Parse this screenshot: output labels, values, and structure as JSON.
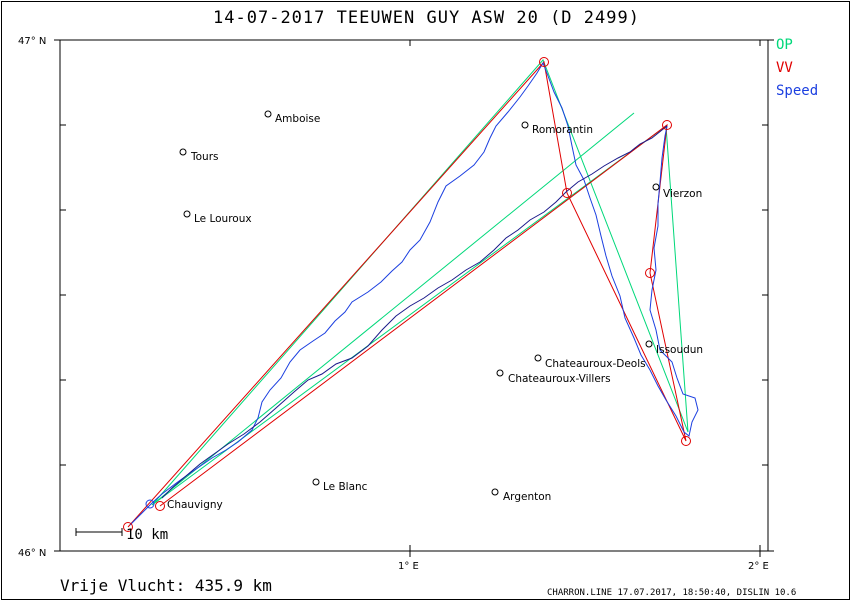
{
  "title": "14-07-2017   TEEUWEN GUY   ASW 20 (D 2499)",
  "legend": [
    {
      "label": "OP",
      "color": "#00d87a"
    },
    {
      "label": "VV",
      "color": "#e00000"
    },
    {
      "label": "Speed",
      "color": "#1b3fe0"
    }
  ],
  "axes": {
    "lat_top": "47° N",
    "lat_bottom": "46° N",
    "lon_1": "1° E",
    "lon_2": "2° E"
  },
  "scale_label": "10 km",
  "distance_label": "Vrije Vlucht:  435.9 km",
  "footer": "CHARRON.LINE 17.07.2017, 18:50:40, DISLIN 10.6",
  "places": [
    {
      "name": "Amboise"
    },
    {
      "name": "Tours"
    },
    {
      "name": "Le Louroux"
    },
    {
      "name": "Romorantin"
    },
    {
      "name": "Vierzon"
    },
    {
      "name": "Issoudun"
    },
    {
      "name": "Chateauroux-Deols"
    },
    {
      "name": "Chateauroux-Villers"
    },
    {
      "name": "Le Blanc"
    },
    {
      "name": "Argenton"
    },
    {
      "name": "Chauvigny"
    }
  ],
  "colors": {
    "op": "#00d87a",
    "vv": "#e00000",
    "track": "#1b3fe0",
    "track_dark": "#1a1a8a"
  }
}
